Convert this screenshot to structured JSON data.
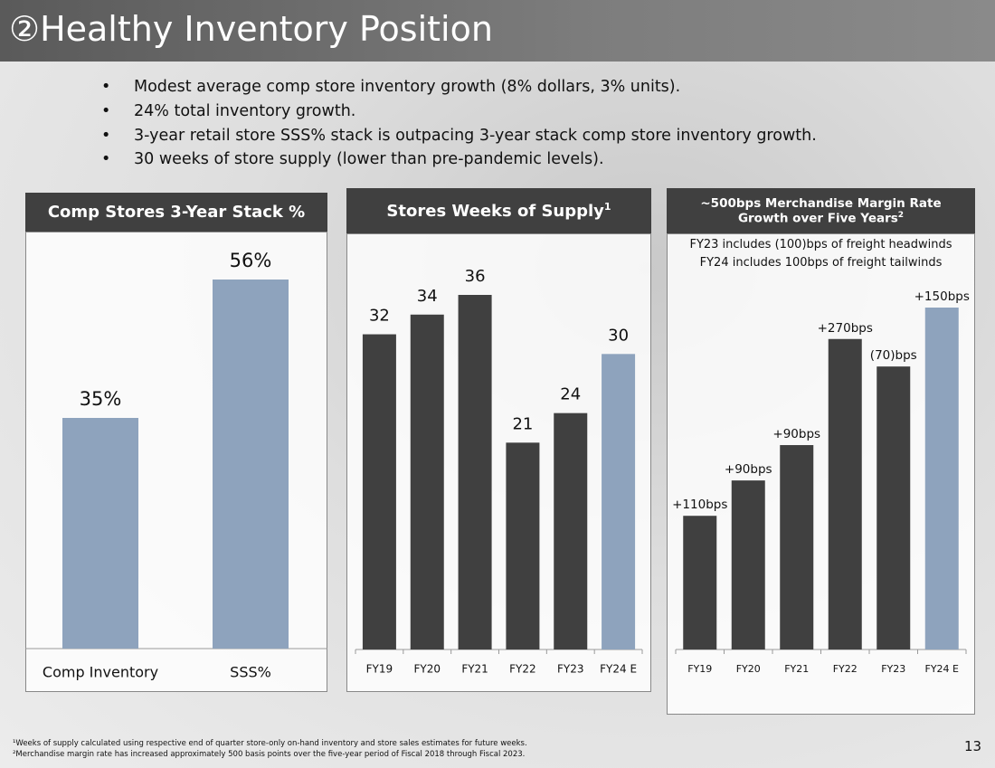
{
  "header": {
    "title": "②Healthy Inventory Position"
  },
  "bullets": [
    "Modest average comp store inventory growth (8% dollars, 3% units).",
    "24% total inventory growth.",
    "3-year retail store SSS% stack is outpacing 3-year stack comp store inventory growth.",
    "30 weeks of store supply (lower than pre-pandemic levels)."
  ],
  "chart_data": [
    {
      "type": "bar",
      "title": "Comp Stores 3-Year Stack %",
      "categories": [
        "Comp Inventory",
        "SSS%"
      ],
      "values": [
        35,
        56
      ],
      "value_labels": [
        "35%",
        "56%"
      ],
      "colors": [
        "#8ea3bd",
        "#8ea3bd"
      ]
    },
    {
      "type": "bar",
      "title": "Stores Weeks of Supply",
      "title_note": "1",
      "categories": [
        "FY19",
        "FY20",
        "FY21",
        "FY22",
        "FY23",
        "FY24 E"
      ],
      "values": [
        32,
        34,
        36,
        21,
        24,
        30
      ],
      "colors": [
        "#404040",
        "#404040",
        "#404040",
        "#404040",
        "#404040",
        "#8ea3bd"
      ]
    },
    {
      "type": "cumulative_bar",
      "title": "~500bps Merchandise Margin Rate Growth over Five Years",
      "title_note": "2",
      "subtitle": [
        "FY23 includes (100)bps of freight headwinds",
        "FY24 includes 100bps of freight tailwinds"
      ],
      "categories": [
        "FY19",
        "FY20",
        "FY21",
        "FY22",
        "FY23",
        "FY24 E"
      ],
      "values": [
        110,
        90,
        90,
        270,
        -70,
        150
      ],
      "value_labels": [
        "+110bps",
        "+90bps",
        "+90bps",
        "+270bps",
        "(70)bps",
        "+150bps"
      ],
      "colors": [
        "#404040",
        "#404040",
        "#404040",
        "#404040",
        "#404040",
        "#8ea3bd"
      ]
    }
  ],
  "footnotes": [
    "¹Weeks of supply calculated using respective end of quarter store-only on-hand inventory and store sales estimates for future weeks.",
    "²Merchandise margin rate has increased approximately 500 basis points over the five-year period of Fiscal 2018 through Fiscal 2023."
  ],
  "page_number": "13"
}
